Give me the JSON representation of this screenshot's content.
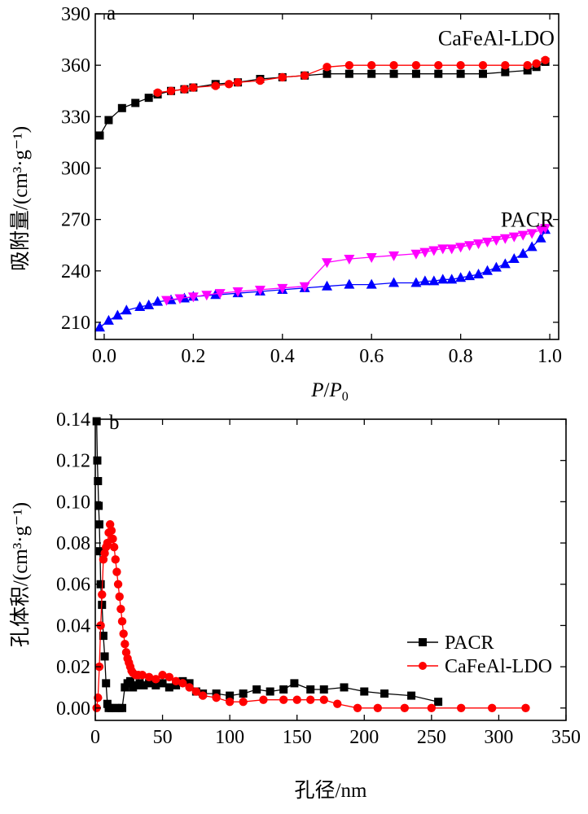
{
  "chart_data": [
    {
      "type": "line",
      "panel_label": "a",
      "xlabel_italic": "P",
      "xlabel_mid": "/",
      "xlabel_italic2": "P",
      "xlabel_sub": "0",
      "ylabel": "吸附量/(cm³·g⁻¹)",
      "xlim": [
        -0.02,
        1.02
      ],
      "ylim": [
        200,
        390
      ],
      "xticks": [
        0.0,
        0.2,
        0.4,
        0.6,
        0.8,
        1.0
      ],
      "xtick_labels": [
        "0.0",
        "0.2",
        "0.4",
        "0.6",
        "0.8",
        "1.0"
      ],
      "yticks": [
        210,
        240,
        270,
        300,
        330,
        360,
        390
      ],
      "ytick_labels": [
        "210",
        "240",
        "270",
        "300",
        "330",
        "360",
        "390"
      ],
      "annotations": [
        {
          "text": "CaFeAl-LDO",
          "x": 0.88,
          "y": 376
        },
        {
          "text": "PACR",
          "x": 0.95,
          "y": 270
        }
      ],
      "series": [
        {
          "name": "CaFeAl-LDO",
          "color": "#000000",
          "marker": "square",
          "x": [
            -0.01,
            0.01,
            0.04,
            0.07,
            0.1,
            0.12,
            0.15,
            0.18,
            0.2,
            0.25,
            0.3,
            0.35,
            0.4,
            0.45,
            0.5,
            0.55,
            0.6,
            0.65,
            0.7,
            0.75,
            0.8,
            0.85,
            0.9,
            0.95,
            0.97,
            0.99
          ],
          "y": [
            319,
            328,
            335,
            338,
            341,
            343,
            345,
            346,
            347,
            349,
            350,
            352,
            353,
            354,
            355,
            355,
            355,
            355,
            355,
            355,
            355,
            355,
            356,
            357,
            359,
            362
          ]
        },
        {
          "name": "CaFeAl-LDO",
          "color": "#ff0000",
          "marker": "circle",
          "x": [
            0.12,
            0.15,
            0.18,
            0.2,
            0.25,
            0.28,
            0.3,
            0.35,
            0.4,
            0.45,
            0.5,
            0.55,
            0.6,
            0.65,
            0.7,
            0.75,
            0.8,
            0.85,
            0.9,
            0.95,
            0.97,
            0.99
          ],
          "y": [
            344,
            345,
            346,
            347,
            348,
            349,
            350,
            351,
            353,
            354,
            359,
            360,
            360,
            360,
            360,
            360,
            360,
            360,
            360,
            360,
            361,
            363
          ]
        },
        {
          "name": "PACR",
          "color": "#0000ff",
          "marker": "triangle-up",
          "x": [
            -0.01,
            0.01,
            0.03,
            0.05,
            0.08,
            0.1,
            0.12,
            0.15,
            0.18,
            0.2,
            0.25,
            0.3,
            0.35,
            0.4,
            0.45,
            0.5,
            0.55,
            0.6,
            0.65,
            0.7,
            0.72,
            0.74,
            0.76,
            0.78,
            0.8,
            0.82,
            0.84,
            0.86,
            0.88,
            0.9,
            0.92,
            0.94,
            0.96,
            0.98,
            0.99
          ],
          "y": [
            207,
            211,
            214,
            217,
            219,
            220,
            222,
            223,
            224,
            225,
            226,
            227,
            228,
            229,
            230,
            231,
            232,
            232,
            233,
            233,
            234,
            234,
            235,
            235,
            236,
            237,
            238,
            240,
            242,
            244,
            247,
            250,
            254,
            259,
            264
          ]
        },
        {
          "name": "PACR",
          "color": "#ff00ff",
          "marker": "triangle-down",
          "x": [
            0.14,
            0.17,
            0.2,
            0.23,
            0.26,
            0.3,
            0.35,
            0.4,
            0.45,
            0.5,
            0.55,
            0.6,
            0.65,
            0.7,
            0.72,
            0.74,
            0.76,
            0.78,
            0.8,
            0.82,
            0.84,
            0.86,
            0.88,
            0.9,
            0.92,
            0.94,
            0.96,
            0.98,
            0.99
          ],
          "y": [
            223,
            224,
            225,
            226,
            227,
            228,
            229,
            230,
            231,
            245,
            247,
            248,
            249,
            250,
            251,
            252,
            253,
            253,
            254,
            255,
            256,
            257,
            258,
            259,
            260,
            261,
            262,
            264,
            265
          ]
        }
      ]
    },
    {
      "type": "line",
      "panel_label": "b",
      "xlabel": "孔径/nm",
      "ylabel": "孔体积/(cm³·g⁻¹)",
      "xlim": [
        0,
        350
      ],
      "ylim": [
        -0.006,
        0.14
      ],
      "xticks": [
        0,
        50,
        100,
        150,
        200,
        250,
        300,
        350
      ],
      "xtick_labels": [
        "0",
        "50",
        "100",
        "150",
        "200",
        "250",
        "300",
        "350"
      ],
      "yticks": [
        0.0,
        0.02,
        0.04,
        0.06,
        0.08,
        0.1,
        0.12,
        0.14
      ],
      "ytick_labels": [
        "0.00",
        "0.02",
        "0.04",
        "0.06",
        "0.08",
        "0.10",
        "0.12",
        "0.14"
      ],
      "legend": {
        "position": "right",
        "entries": [
          "PACR",
          "CaFeAl-LDO"
        ]
      },
      "series": [
        {
          "name": "PACR",
          "color": "#000000",
          "marker": "square",
          "x": [
            1,
            1.5,
            2,
            2.5,
            3,
            3.5,
            4,
            5,
            6,
            7,
            8,
            9,
            10,
            12,
            15,
            18,
            20,
            22,
            24,
            26,
            28,
            30,
            33,
            36,
            40,
            45,
            50,
            55,
            60,
            65,
            70,
            75,
            80,
            90,
            100,
            110,
            120,
            130,
            140,
            148,
            160,
            170,
            185,
            200,
            215,
            235,
            255
          ],
          "y": [
            0.139,
            0.12,
            0.11,
            0.098,
            0.089,
            0.076,
            0.06,
            0.05,
            0.035,
            0.025,
            0.012,
            0.002,
            0.0,
            0.0,
            0.0,
            0.0,
            0.0,
            0.01,
            0.012,
            0.013,
            0.01,
            0.011,
            0.012,
            0.011,
            0.012,
            0.011,
            0.012,
            0.01,
            0.011,
            0.013,
            0.012,
            0.008,
            0.007,
            0.007,
            0.006,
            0.007,
            0.009,
            0.008,
            0.009,
            0.012,
            0.009,
            0.009,
            0.01,
            0.008,
            0.007,
            0.006,
            0.003
          ]
        },
        {
          "name": "CaFeAl-LDO",
          "color": "#ff0000",
          "marker": "circle",
          "x": [
            1,
            2,
            3,
            4,
            5,
            6,
            7,
            8,
            9,
            10,
            11,
            12,
            13,
            14,
            15,
            16,
            17,
            18,
            19,
            20,
            21,
            22,
            23,
            24,
            25,
            26,
            27,
            28,
            30,
            32,
            35,
            40,
            45,
            50,
            55,
            60,
            65,
            70,
            75,
            80,
            90,
            100,
            110,
            125,
            140,
            150,
            160,
            170,
            180,
            195,
            210,
            230,
            250,
            272,
            295,
            320
          ],
          "y": [
            0.0,
            0.005,
            0.02,
            0.04,
            0.055,
            0.072,
            0.075,
            0.078,
            0.08,
            0.085,
            0.089,
            0.086,
            0.082,
            0.078,
            0.072,
            0.066,
            0.06,
            0.054,
            0.048,
            0.042,
            0.036,
            0.031,
            0.027,
            0.024,
            0.022,
            0.02,
            0.018,
            0.017,
            0.016,
            0.016,
            0.016,
            0.015,
            0.014,
            0.016,
            0.015,
            0.013,
            0.012,
            0.01,
            0.008,
            0.006,
            0.005,
            0.003,
            0.003,
            0.004,
            0.004,
            0.004,
            0.004,
            0.004,
            0.002,
            0.0,
            0.0,
            0.0,
            0.0,
            0.0,
            0.0,
            0.0
          ]
        }
      ]
    }
  ]
}
